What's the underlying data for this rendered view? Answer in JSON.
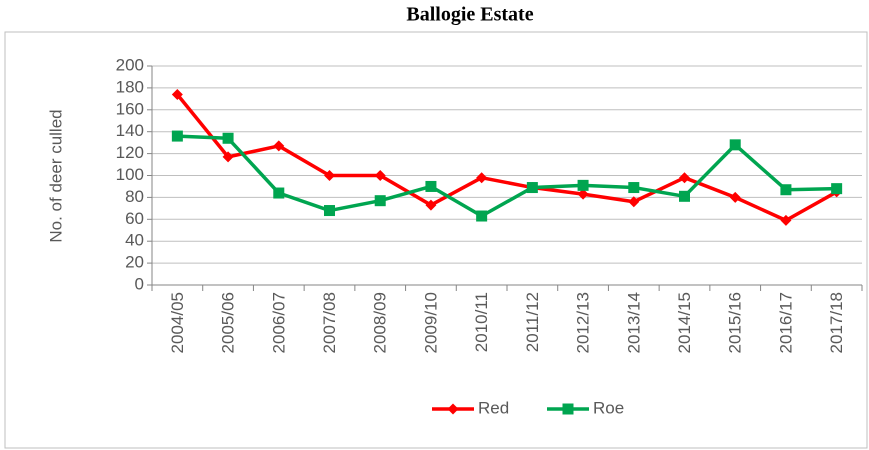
{
  "chart_data": {
    "type": "line",
    "title": "Ballogie Estate",
    "y_label": "No. of deer culled",
    "categories": [
      "2004/05",
      "2005/06",
      "2006/07",
      "2007/08",
      "2008/09",
      "2009/10",
      "2010/11",
      "2011/12",
      "2012/13",
      "2013/14",
      "2014/15",
      "2015/16",
      "2016/17",
      "2017/18"
    ],
    "series": [
      {
        "name": "Red",
        "color": "#ff0000",
        "marker": "diamond",
        "values": [
          174,
          117,
          127,
          100,
          100,
          73,
          98,
          89,
          83,
          76,
          98,
          80,
          59,
          85
        ]
      },
      {
        "name": "Roe",
        "color": "#00a550",
        "marker": "square",
        "values": [
          136,
          134,
          84,
          68,
          77,
          90,
          63,
          89,
          91,
          89,
          81,
          128,
          87,
          88
        ]
      }
    ],
    "ylim": [
      0,
      200
    ],
    "yticks": [
      0,
      20,
      40,
      60,
      80,
      100,
      120,
      140,
      160,
      180,
      200
    ],
    "grid": true,
    "legend": "bottom"
  }
}
